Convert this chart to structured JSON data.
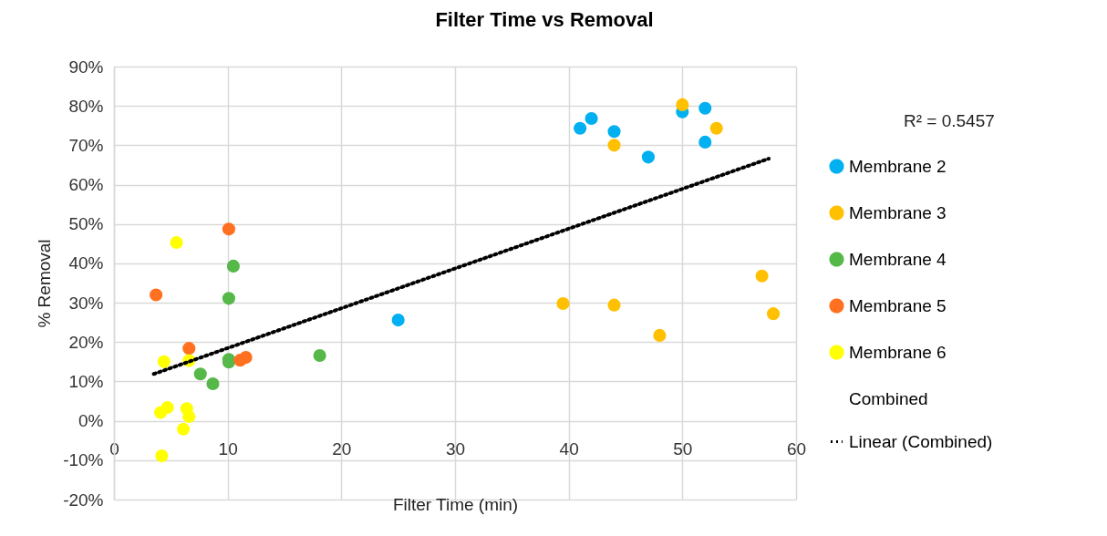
{
  "chart_data": {
    "type": "scatter",
    "title": "Filter Time vs Removal",
    "xlabel": "Filter Time (min)",
    "ylabel": "% Removal",
    "marker": "circle",
    "grid": true,
    "legend": "right",
    "xlim": [
      0,
      60
    ],
    "xticks": [
      0,
      10,
      20,
      30,
      40,
      50,
      60
    ],
    "ylim": [
      -20,
      90
    ],
    "yticks": [
      {
        "value": -20,
        "label": "-20%"
      },
      {
        "value": -10,
        "label": "-10%"
      },
      {
        "value": 0,
        "label": "0%"
      },
      {
        "value": 10,
        "label": "10%"
      },
      {
        "value": 20,
        "label": "20%"
      },
      {
        "value": 30,
        "label": "30%"
      },
      {
        "value": 40,
        "label": "40%"
      },
      {
        "value": 50,
        "label": "50%"
      },
      {
        "value": 60,
        "label": "60%"
      },
      {
        "value": 70,
        "label": "70%"
      },
      {
        "value": 80,
        "label": "80%"
      },
      {
        "value": 90,
        "label": "90%"
      }
    ],
    "annotations": [
      "R² = 0.5457"
    ],
    "series": [
      {
        "name": "Membrane 2",
        "color": "#00b0f0",
        "x": [
          41,
          42,
          44,
          47,
          50,
          52,
          52,
          25
        ],
        "values": [
          74.3,
          76.8,
          73.5,
          67,
          78.5,
          79.4,
          70.8,
          25.6
        ]
      },
      {
        "name": "Membrane 3",
        "color": "#ffc000",
        "x": [
          50,
          44,
          53,
          39.5,
          44,
          48,
          57,
          58
        ],
        "values": [
          80.3,
          70,
          74.3,
          29.8,
          29.4,
          21.7,
          36.8,
          27.2
        ]
      },
      {
        "name": "Membrane 4",
        "color": "#55b848",
        "x": [
          10.5,
          10.1,
          10.1,
          10.1,
          7.6,
          8.7,
          18.1
        ],
        "values": [
          39.3,
          31.1,
          15.6,
          14.9,
          11.9,
          9.4,
          16.6
        ]
      },
      {
        "name": "Membrane 5",
        "color": "#ff7020",
        "x": [
          10.1,
          3.7,
          6.6,
          11.1,
          11.6
        ],
        "values": [
          48.7,
          32,
          18.4,
          15.4,
          16.1
        ]
      },
      {
        "name": "Membrane 6",
        "color": "#ffff00",
        "x": [
          5.5,
          4.4,
          6.6,
          4.7,
          4.1,
          6.4,
          6.6,
          6.1,
          4.2
        ],
        "values": [
          45.3,
          15,
          15.3,
          3.4,
          2.1,
          3.1,
          1.1,
          -2.1,
          -8.9
        ]
      },
      {
        "name": "Combined"
      },
      {
        "name": "Linear (Combined)",
        "type": "line",
        "marker": "none",
        "color": "#000000",
        "line_style": "dotted",
        "x": [
          3.5,
          57.6
        ],
        "values": [
          11.9,
          66.6
        ]
      }
    ]
  }
}
